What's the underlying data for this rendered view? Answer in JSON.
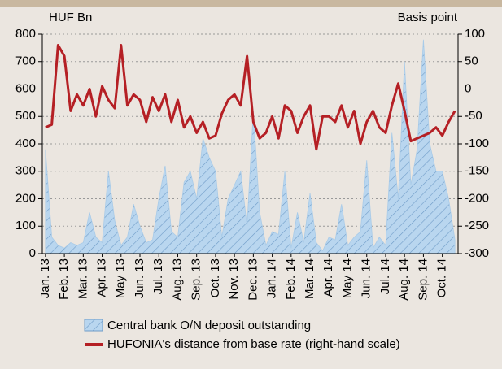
{
  "chart_data": {
    "type": "dual_axis_area_line",
    "y_label": "HUF Bn",
    "y2_label": "Basis point",
    "categories": [
      "Jan. 13",
      null,
      null,
      "Feb. 13",
      null,
      null,
      "Mar. 13",
      null,
      null,
      "Apr. 13",
      null,
      null,
      "May 13",
      null,
      null,
      "Jun. 13",
      null,
      null,
      "Jul. 13",
      null,
      null,
      "Aug. 13",
      null,
      null,
      "Sep. 13",
      null,
      null,
      "Oct. 13",
      null,
      null,
      "Nov. 13",
      null,
      null,
      "Dec. 13",
      null,
      null,
      "Jan. 14",
      null,
      null,
      "Feb. 14",
      null,
      null,
      "Mar. 14",
      null,
      null,
      "Apr. 14",
      null,
      null,
      "May 14",
      null,
      null,
      "Jun. 14",
      null,
      null,
      "Jul. 14",
      null,
      null,
      "Aug. 14",
      null,
      null,
      "Sep. 14",
      null,
      null,
      "Oct. 14",
      null,
      null
    ],
    "series": [
      {
        "name": "Central bank O/N deposit outstanding",
        "type": "area",
        "color": "#a9cbe8",
        "values": [
          380,
          60,
          30,
          20,
          40,
          30,
          40,
          150,
          60,
          40,
          300,
          120,
          30,
          60,
          180,
          100,
          40,
          50,
          200,
          320,
          80,
          60,
          260,
          300,
          200,
          420,
          350,
          300,
          60,
          200,
          250,
          300,
          100,
          520,
          150,
          30,
          80,
          70,
          300,
          20,
          150,
          40,
          220,
          40,
          10,
          60,
          50,
          180,
          30,
          60,
          80,
          340,
          20,
          60,
          30,
          440,
          200,
          700,
          250,
          380,
          780,
          400,
          300,
          300,
          200,
          50
        ]
      },
      {
        "name": "HUFONIA's distance from base rate (right-hand scale)",
        "type": "line",
        "axis": "y2",
        "color": "#b52025",
        "values": [
          -70,
          -65,
          80,
          60,
          -40,
          -10,
          -30,
          0,
          -50,
          5,
          -20,
          -35,
          80,
          -30,
          -10,
          -20,
          -60,
          -15,
          -40,
          -10,
          -60,
          -20,
          -70,
          -50,
          -80,
          -60,
          -90,
          -85,
          -45,
          -20,
          -10,
          -30,
          60,
          -60,
          -90,
          -80,
          -50,
          -90,
          -30,
          -40,
          -80,
          -50,
          -30,
          -110,
          -50,
          -50,
          -60,
          -30,
          -70,
          -40,
          -100,
          -60,
          -40,
          -70,
          -80,
          -30,
          10,
          -40,
          -95,
          -90,
          -85,
          -80,
          -70,
          -85,
          -60,
          -40
        ]
      }
    ],
    "ylim": [
      0,
      800
    ],
    "yticks": [
      0,
      100,
      200,
      300,
      400,
      500,
      600,
      700,
      800
    ],
    "y2lim": [
      -300,
      100
    ],
    "y2ticks": [
      -300,
      -250,
      -200,
      -150,
      -100,
      -50,
      0,
      50,
      100
    ],
    "grid": true
  }
}
